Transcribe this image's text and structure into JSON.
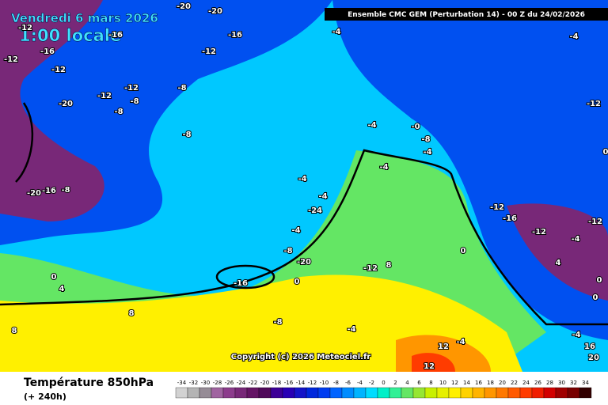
{
  "header": {
    "date": "Vendredi 6 mars 2026",
    "time": "1:00 locale",
    "model": "Ensemble CMC GEM  (Perturbation 14)  - 00 Z du 24/02/2026"
  },
  "copyright": "Copyright (c) 2026 Meteociel.fr",
  "footer": {
    "title": "Température 850hPa",
    "lead": "(+ 240h)"
  },
  "legend": {
    "values": [
      -34,
      -32,
      -30,
      -28,
      -26,
      -24,
      -22,
      -20,
      -18,
      -16,
      -14,
      -12,
      -10,
      -8,
      -6,
      -4,
      -2,
      0,
      2,
      4,
      6,
      8,
      10,
      12,
      14,
      16,
      18,
      20,
      22,
      24,
      26,
      28,
      30,
      32,
      34
    ],
    "colors": [
      "#d2d2d2",
      "#b4b4b4",
      "#968c96",
      "#a064a0",
      "#8c3c8c",
      "#782878",
      "#641464",
      "#500a5a",
      "#3c0096",
      "#2800b4",
      "#1414c8",
      "#0028dc",
      "#003cf0",
      "#0064ff",
      "#008cff",
      "#00b4ff",
      "#00dcff",
      "#00f0c8",
      "#32f096",
      "#64e664",
      "#96e632",
      "#c8f000",
      "#e6f000",
      "#fff000",
      "#ffd200",
      "#ffb400",
      "#ff9600",
      "#ff7800",
      "#ff5a00",
      "#ff3c00",
      "#f01e00",
      "#d20000",
      "#a00000",
      "#780000",
      "#320000"
    ]
  },
  "contour_labels": [
    "-20",
    "-20",
    "-12",
    "-16",
    "-16",
    "-4",
    "-4",
    "-12",
    "-16",
    "-12",
    "-12",
    "-12",
    "-8",
    "-8",
    "-12",
    "-20",
    "-8",
    "-12",
    "-4",
    "-0",
    "-8",
    "-4",
    "-8",
    "0",
    "-4",
    "-4",
    "-4",
    "-24",
    "-20",
    "-16",
    "-8",
    "-12",
    "-16",
    "-12",
    "-12",
    "-4",
    "-4",
    "-8",
    "0",
    "-20",
    "4",
    "8",
    "-12",
    "0",
    "0",
    "4",
    "0",
    "-16",
    "0",
    "8",
    "-8",
    "8",
    "-4",
    "-4",
    "16",
    "12",
    "-4",
    "20",
    "12"
  ]
}
